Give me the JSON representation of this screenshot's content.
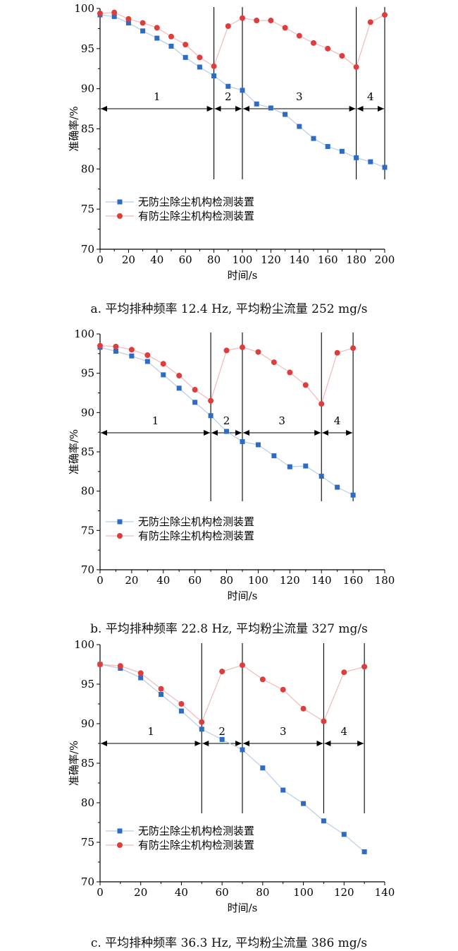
{
  "colors": {
    "series1": "#2e6bc4",
    "series2": "#e03c3c",
    "series1_line": "#b7cde9",
    "series2_line": "#f2b9b9",
    "axis": "#000000"
  },
  "chart_data": [
    {
      "type": "line",
      "caption": "a. 平均排种频率 12.4 Hz, 平均粉尘流量 252 mg/s",
      "xlabel": "时间/s",
      "ylabel": "准确率/%",
      "xlim": [
        0,
        200
      ],
      "ylim": [
        70,
        100
      ],
      "xticks": [
        0,
        20,
        40,
        60,
        80,
        100,
        120,
        140,
        160,
        180,
        200
      ],
      "yticks": [
        70,
        75,
        80,
        85,
        90,
        95,
        100
      ],
      "legend_position": "lower-left",
      "boundaries": [
        80,
        100,
        180,
        200
      ],
      "segments": [
        {
          "label": "1",
          "from": 0,
          "to": 80
        },
        {
          "label": "2",
          "from": 80,
          "to": 100
        },
        {
          "label": "3",
          "from": 100,
          "to": 180
        },
        {
          "label": "4",
          "from": 180,
          "to": 200
        }
      ],
      "series": [
        {
          "name": "无防尘除尘机构检测装置",
          "marker": "square",
          "x": [
            0,
            10,
            20,
            30,
            40,
            50,
            60,
            70,
            80,
            90,
            100,
            110,
            120,
            130,
            140,
            150,
            160,
            170,
            180,
            190,
            200
          ],
          "y": [
            99.2,
            99.0,
            98.2,
            97.2,
            96.3,
            95.3,
            93.9,
            92.7,
            91.6,
            90.3,
            89.8,
            88.1,
            87.6,
            86.8,
            85.3,
            83.8,
            82.8,
            82.2,
            81.4,
            80.9,
            80.2
          ]
        },
        {
          "name": "有防尘除尘机构检测装置",
          "marker": "circle",
          "x": [
            0,
            10,
            20,
            30,
            40,
            50,
            60,
            70,
            80,
            90,
            100,
            110,
            120,
            130,
            140,
            150,
            160,
            170,
            180,
            190,
            200
          ],
          "y": [
            99.4,
            99.5,
            98.7,
            98.2,
            97.6,
            96.5,
            95.5,
            93.9,
            92.8,
            97.8,
            98.8,
            98.5,
            98.5,
            97.6,
            96.6,
            95.7,
            95.0,
            94.1,
            92.7,
            98.3,
            99.2
          ]
        }
      ]
    },
    {
      "type": "line",
      "caption": "b. 平均排种频率 22.8 Hz, 平均粉尘流量 327 mg/s",
      "xlabel": "时间/s",
      "ylabel": "准确率/%",
      "xlim": [
        0,
        180
      ],
      "ylim": [
        70,
        100
      ],
      "xticks": [
        0,
        20,
        40,
        60,
        80,
        100,
        120,
        140,
        160,
        180
      ],
      "yticks": [
        70,
        75,
        80,
        85,
        90,
        95,
        100
      ],
      "legend_position": "lower-left",
      "boundaries": [
        70,
        90,
        140,
        160
      ],
      "segments": [
        {
          "label": "1",
          "from": 0,
          "to": 70
        },
        {
          "label": "2",
          "from": 70,
          "to": 90
        },
        {
          "label": "3",
          "from": 90,
          "to": 140
        },
        {
          "label": "4",
          "from": 140,
          "to": 160
        }
      ],
      "series": [
        {
          "name": "无防尘除尘机构检测装置",
          "marker": "square",
          "x": [
            0,
            10,
            20,
            30,
            40,
            50,
            60,
            70,
            80,
            90,
            100,
            110,
            120,
            130,
            140,
            150,
            160
          ],
          "y": [
            98.3,
            97.8,
            97.2,
            96.5,
            94.8,
            93.1,
            91.3,
            89.6,
            87.6,
            86.3,
            85.9,
            84.5,
            83.1,
            83.2,
            81.9,
            80.5,
            79.5
          ]
        },
        {
          "name": "有防尘除尘机构检测装置",
          "marker": "circle",
          "x": [
            0,
            10,
            20,
            30,
            40,
            50,
            60,
            70,
            80,
            90,
            100,
            110,
            120,
            130,
            140,
            150,
            160
          ],
          "y": [
            98.5,
            98.4,
            98.0,
            97.3,
            96.2,
            94.7,
            92.9,
            91.5,
            97.9,
            98.3,
            97.7,
            96.4,
            95.1,
            93.5,
            91.1,
            97.6,
            98.2
          ]
        }
      ]
    },
    {
      "type": "line",
      "caption": "c. 平均排种频率 36.3 Hz, 平均粉尘流量 386 mg/s",
      "xlabel": "时间/s",
      "ylabel": "准确率/%",
      "xlim": [
        0,
        140
      ],
      "ylim": [
        70,
        100
      ],
      "xticks": [
        0,
        20,
        40,
        60,
        80,
        100,
        120,
        140
      ],
      "yticks": [
        70,
        75,
        80,
        85,
        90,
        95,
        100
      ],
      "legend_position": "lower-left",
      "boundaries": [
        50,
        70,
        110,
        130
      ],
      "segments": [
        {
          "label": "1",
          "from": 0,
          "to": 50
        },
        {
          "label": "2",
          "from": 50,
          "to": 70
        },
        {
          "label": "3",
          "from": 70,
          "to": 110
        },
        {
          "label": "4",
          "from": 110,
          "to": 130
        }
      ],
      "series": [
        {
          "name": "无防尘除尘机构检测装置",
          "marker": "square",
          "x": [
            0,
            10,
            20,
            30,
            40,
            50,
            60,
            70,
            80,
            90,
            100,
            110,
            120,
            130
          ],
          "y": [
            97.5,
            97.0,
            95.8,
            93.7,
            91.6,
            89.3,
            88.0,
            86.7,
            84.4,
            81.6,
            79.9,
            77.7,
            76.0,
            73.8
          ]
        },
        {
          "name": "有防尘除尘机构检测装置",
          "marker": "circle",
          "x": [
            0,
            10,
            20,
            30,
            40,
            50,
            60,
            70,
            80,
            90,
            100,
            110,
            120,
            130
          ],
          "y": [
            97.5,
            97.3,
            96.4,
            94.4,
            92.5,
            90.2,
            96.6,
            97.4,
            95.6,
            94.3,
            91.9,
            90.3,
            96.5,
            97.2
          ]
        }
      ]
    }
  ]
}
